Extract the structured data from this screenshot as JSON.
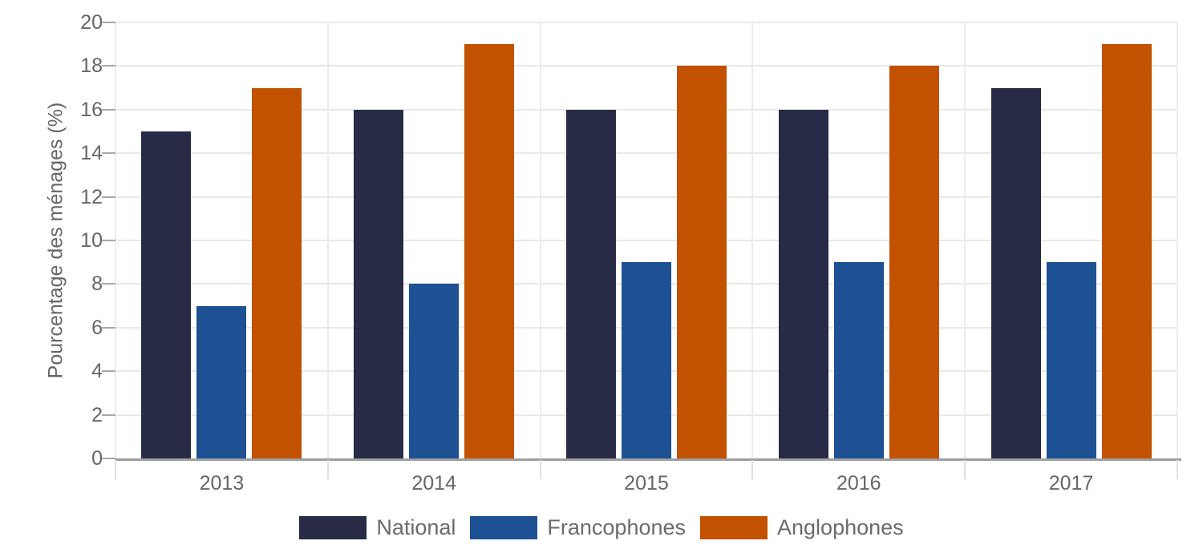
{
  "chart_data": {
    "type": "bar",
    "title": "",
    "categories": [
      "2013",
      "2014",
      "2015",
      "2016",
      "2017"
    ],
    "series": [
      {
        "name": "National",
        "color": "#282b46",
        "values": [
          15,
          16,
          16,
          16,
          17
        ]
      },
      {
        "name": "Francophones",
        "color": "#1d5193",
        "values": [
          7,
          8,
          9,
          9,
          9
        ]
      },
      {
        "name": "Anglophones",
        "color": "#c25100",
        "values": [
          17,
          19,
          18,
          18,
          19
        ]
      }
    ],
    "xlabel": "",
    "ylabel": "Pourcentage des ménages (%)",
    "ylim": [
      0,
      20
    ],
    "yticks": [
      0,
      2,
      4,
      6,
      8,
      10,
      12,
      14,
      16,
      18,
      20
    ],
    "grid": true,
    "legend_position": "bottom",
    "colors": {
      "grid": "#e9e9e9",
      "axis": "#9e9e9e",
      "tick_text": "#666666",
      "legend_text": "#6b6b6b",
      "background": "#ffffff"
    }
  }
}
